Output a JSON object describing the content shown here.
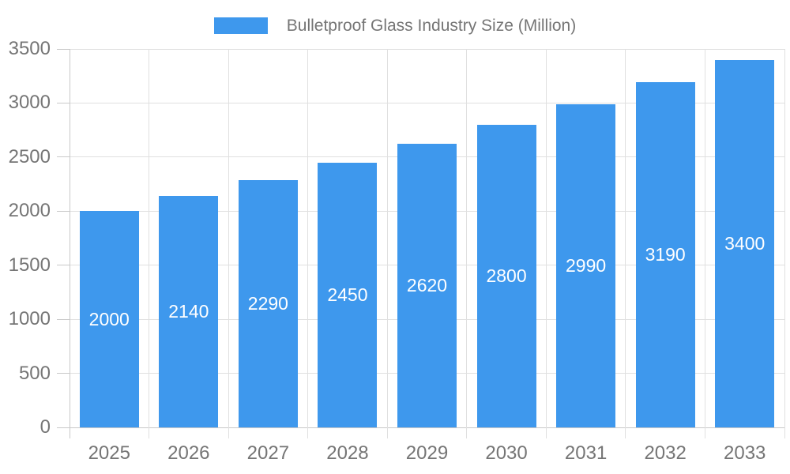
{
  "chart_data": {
    "type": "bar",
    "title": "",
    "legend_position": "top",
    "categories": [
      "2025",
      "2026",
      "2027",
      "2028",
      "2029",
      "2030",
      "2031",
      "2032",
      "2033"
    ],
    "series": [
      {
        "name": "Bulletproof Glass Industry Size (Million)",
        "values": [
          2000,
          2140,
          2290,
          2450,
          2620,
          2800,
          2990,
          3190,
          3400
        ]
      }
    ],
    "bar_value_labels": [
      "2000",
      "2140",
      "2290",
      "2450",
      "2620",
      "2800",
      "2990",
      "3190",
      "3400"
    ],
    "xlabel": "",
    "ylabel": "",
    "ylim": [
      0,
      3500
    ],
    "yticks": [
      0,
      500,
      1000,
      1500,
      2000,
      2500,
      3000,
      3500
    ],
    "grid": true,
    "colors": {
      "bar": "#3e98ed",
      "bar_label_text": "#ffffff",
      "axis_text": "#757575",
      "legend_text": "#757575",
      "gridline": "#e0e0e0",
      "axis_line": "#c9c9c9",
      "background": "#ffffff"
    }
  }
}
